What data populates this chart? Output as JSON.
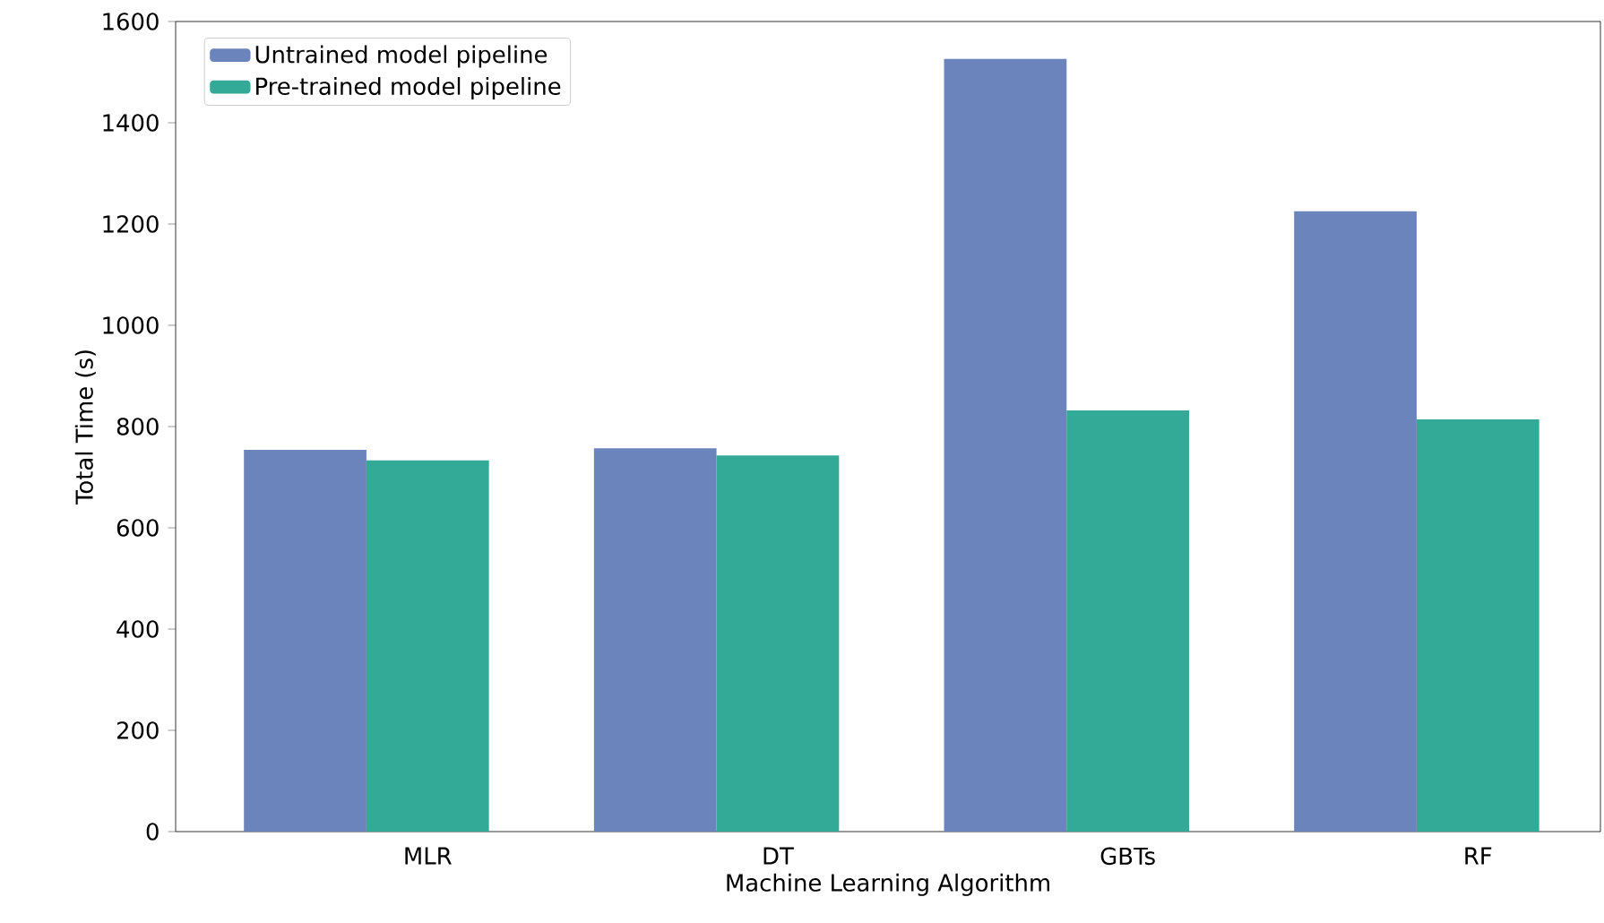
{
  "chart_data": {
    "type": "bar",
    "xlabel": "Machine Learning Algorithm",
    "ylabel": "Total Time (s)",
    "categories": [
      "MLR",
      "DT",
      "GBTs",
      "RF"
    ],
    "series": [
      {
        "name": "Untrained model pipeline",
        "color": "#6b84bb",
        "values": [
          754,
          757,
          1526,
          1225
        ]
      },
      {
        "name": "Pre-trained model pipeline",
        "color": "#33a997",
        "values": [
          733,
          743,
          832,
          814
        ]
      }
    ],
    "ylim": [
      0,
      1600
    ],
    "yticks": [
      0,
      200,
      400,
      600,
      800,
      1000,
      1200,
      1400,
      1600
    ],
    "grid": false,
    "legend": "top left"
  }
}
